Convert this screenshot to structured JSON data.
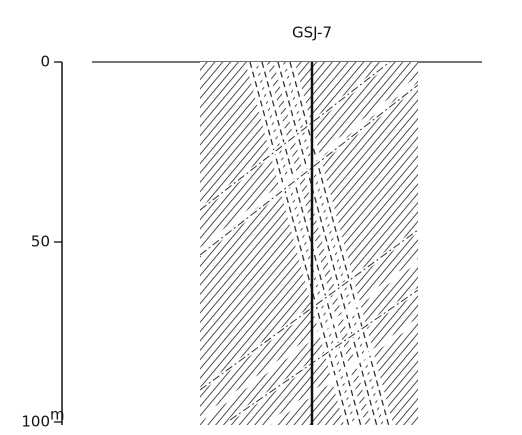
{
  "title": "GSJ-7",
  "depth_axis": {
    "ylim": [
      0,
      100
    ],
    "yticks": [
      0,
      50,
      100
    ],
    "unit": "m"
  }
}
